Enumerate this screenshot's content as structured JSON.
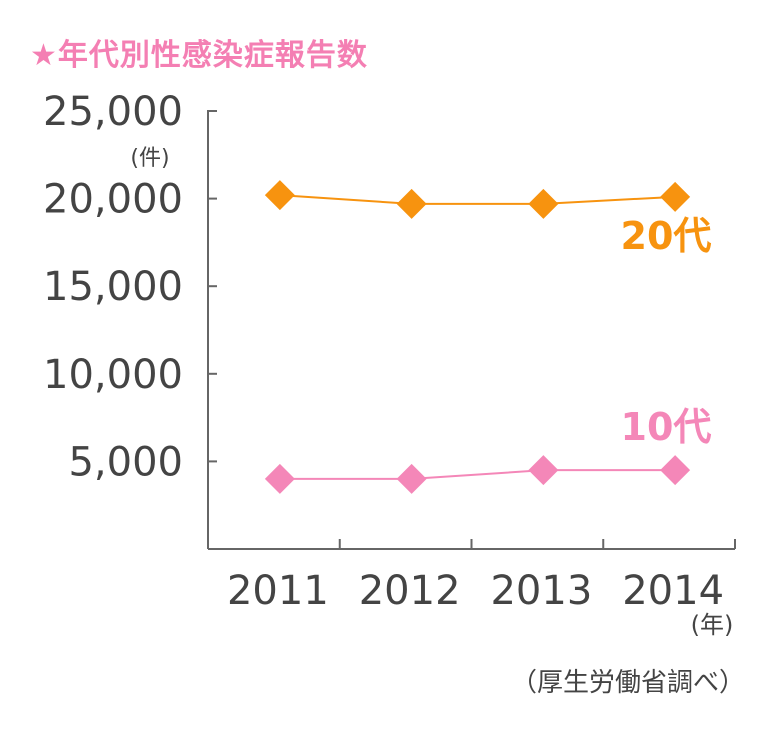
{
  "title": "★年代別性感染症報告数",
  "source": "（厚生労働省調べ）",
  "chart_data": {
    "type": "line",
    "categories": [
      "2011",
      "2012",
      "2013",
      "2014"
    ],
    "ylim": [
      0,
      25000
    ],
    "yticks": [
      "25,000",
      "20,000",
      "15,000",
      "10,000",
      "5,000"
    ],
    "y_unit": "(件)",
    "x_unit": "(年)",
    "grid": false,
    "series": [
      {
        "name": "20代",
        "values": [
          20200,
          19700,
          19700,
          20100
        ],
        "color": "#f7930f"
      },
      {
        "name": "10代",
        "values": [
          4000,
          4000,
          4500,
          4500
        ],
        "color": "#f487b8"
      }
    ]
  }
}
